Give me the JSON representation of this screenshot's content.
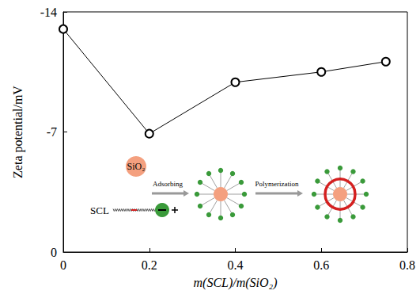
{
  "chart_data": {
    "type": "line",
    "x": [
      0,
      0.2,
      0.4,
      0.6,
      0.75
    ],
    "values": [
      -13.0,
      -6.9,
      -9.9,
      -10.5,
      -11.1
    ],
    "xlim": [
      0,
      0.8
    ],
    "xticks": [
      0,
      0.2,
      0.4,
      0.6,
      0.8
    ],
    "ylim": [
      0,
      -14
    ],
    "yticks": [
      0,
      -7,
      -14
    ],
    "x_label": "m(SCL)/m(SiO₂)",
    "y_label": "Zeta potential/mV",
    "color": "#000000",
    "marker": "open_circle",
    "line_style": "solid",
    "grid": false,
    "annotations": [
      "SiO₂",
      "SCL",
      "Adsorbing",
      "Polymerization"
    ]
  }
}
